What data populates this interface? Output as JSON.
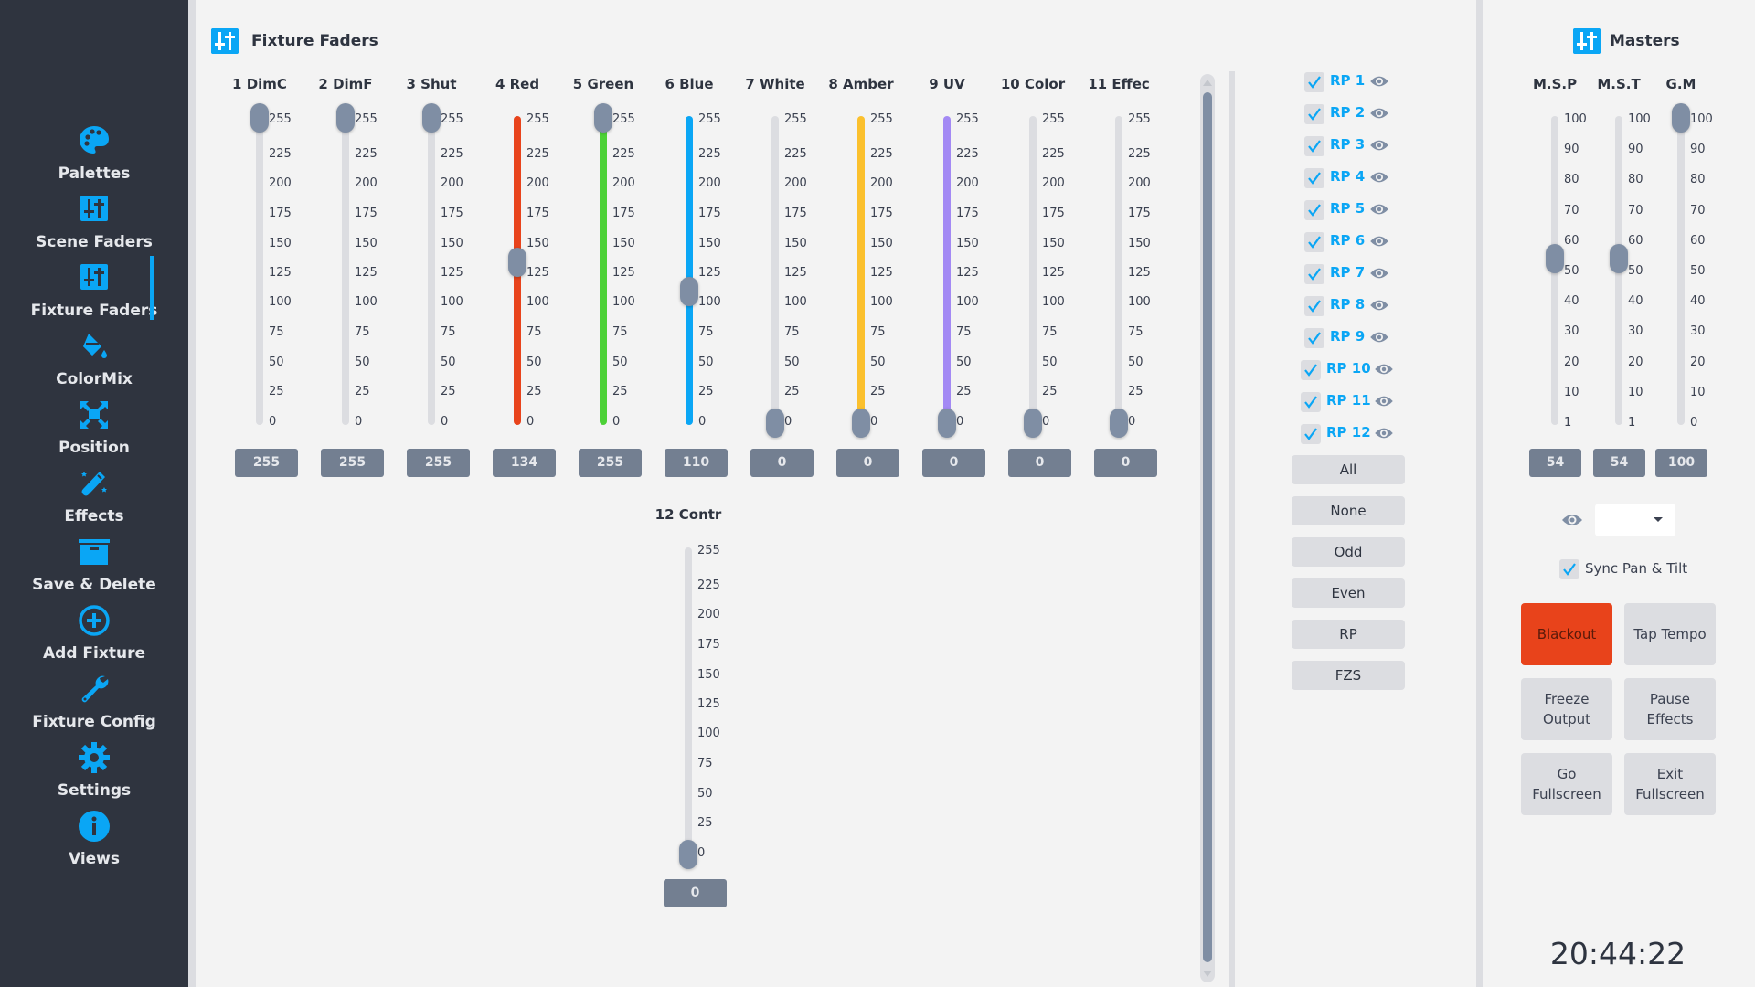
{
  "sidebar": {
    "items": [
      {
        "label": "Palettes",
        "icon": "palette-icon"
      },
      {
        "label": "Scene Faders",
        "icon": "sliders-icon"
      },
      {
        "label": "Fixture Faders",
        "icon": "sliders-icon",
        "active": true
      },
      {
        "label": "ColorMix",
        "icon": "paint-bucket-icon"
      },
      {
        "label": "Position",
        "icon": "expand-arrows-icon"
      },
      {
        "label": "Effects",
        "icon": "magic-wand-icon"
      },
      {
        "label": "Save & Delete",
        "icon": "archive-box-icon"
      },
      {
        "label": "Add Fixture",
        "icon": "plus-circle-icon"
      },
      {
        "label": "Fixture Config",
        "icon": "wrench-icon"
      },
      {
        "label": "Settings",
        "icon": "gear-icon"
      },
      {
        "label": "Views",
        "icon": "info-circle-icon"
      }
    ],
    "accent_color": "#0aa6f5"
  },
  "fixture_faders": {
    "title": "Fixture Faders",
    "scale_ticks": [
      "255",
      "225",
      "200",
      "175",
      "150",
      "125",
      "100",
      "75",
      "50",
      "25",
      "0"
    ],
    "faders": [
      {
        "name": "1 DimC",
        "value": "255",
        "color": "#dcdde1"
      },
      {
        "name": "2 DimF",
        "value": "255",
        "color": "#dcdde1"
      },
      {
        "name": "3 Shut",
        "value": "255",
        "color": "#dcdde1"
      },
      {
        "name": "4 Red",
        "value": "134",
        "color": "#e8431b"
      },
      {
        "name": "5 Green",
        "value": "255",
        "color": "#4cd137"
      },
      {
        "name": "6 Blue",
        "value": "110",
        "color": "#0aa6f5"
      },
      {
        "name": "7 White",
        "value": "0",
        "color": "#dcdde1"
      },
      {
        "name": "8 Amber",
        "value": "0",
        "color": "#fbc02d"
      },
      {
        "name": "9 UV",
        "value": "0",
        "color": "#a389f4"
      },
      {
        "name": "10 Color",
        "value": "0",
        "color": "#dcdde1"
      },
      {
        "name": "11 Effec",
        "value": "0",
        "color": "#dcdde1"
      },
      {
        "name": "12 Contr",
        "value": "0",
        "color": "#dcdde1"
      }
    ]
  },
  "fixture_select": {
    "items": [
      {
        "label": "RP 1",
        "checked": true
      },
      {
        "label": "RP 2",
        "checked": true
      },
      {
        "label": "RP 3",
        "checked": true
      },
      {
        "label": "RP 4",
        "checked": true
      },
      {
        "label": "RP 5",
        "checked": true
      },
      {
        "label": "RP 6",
        "checked": true
      },
      {
        "label": "RP 7",
        "checked": true
      },
      {
        "label": "RP 8",
        "checked": true
      },
      {
        "label": "RP 9",
        "checked": true
      },
      {
        "label": "RP 10",
        "checked": true
      },
      {
        "label": "RP 11",
        "checked": true
      },
      {
        "label": "RP 12",
        "checked": true
      }
    ],
    "buttons": [
      "All",
      "None",
      "Odd",
      "Even",
      "RP",
      "FZS"
    ]
  },
  "masters": {
    "title": "Masters",
    "faders": [
      {
        "name": "M.S.P",
        "value": "54",
        "ticks": [
          "100",
          "90",
          "80",
          "70",
          "60",
          "50",
          "40",
          "30",
          "20",
          "10",
          "1"
        ]
      },
      {
        "name": "M.S.T",
        "value": "54",
        "ticks": [
          "100",
          "90",
          "80",
          "70",
          "60",
          "50",
          "40",
          "30",
          "20",
          "10",
          "1"
        ]
      },
      {
        "name": "G.M",
        "value": "100",
        "ticks": [
          "100",
          "90",
          "80",
          "70",
          "60",
          "50",
          "40",
          "30",
          "20",
          "10",
          "0"
        ]
      }
    ],
    "view_dropdown_value": "",
    "sync_label": "Sync Pan & Tilt",
    "sync_checked": true,
    "buttons": [
      {
        "label": "Blackout",
        "color": "#e8431b"
      },
      {
        "label": "Tap Tempo"
      },
      {
        "label": "Freeze Output"
      },
      {
        "label": "Pause Effects"
      },
      {
        "label": "Go Fullscreen"
      },
      {
        "label": "Exit Fullscreen"
      }
    ],
    "clock": "20:44:22"
  }
}
